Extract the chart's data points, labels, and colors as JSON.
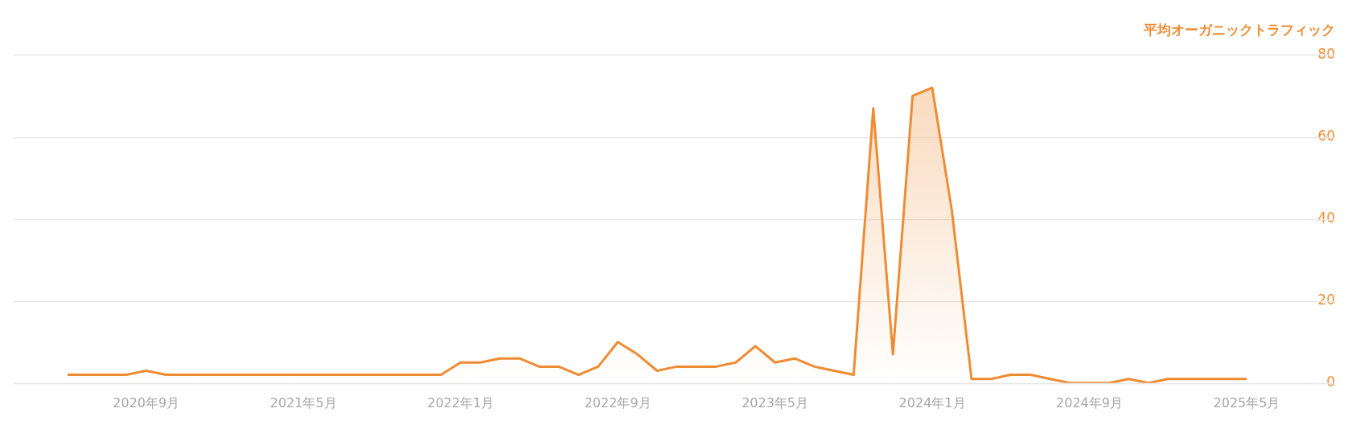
{
  "chart_data": {
    "type": "area",
    "ylabel": "平均オーガニックトラフィック",
    "categories": [
      null,
      null,
      null,
      null,
      "2020年9月",
      null,
      null,
      null,
      null,
      null,
      null,
      null,
      "2021年5月",
      null,
      null,
      null,
      null,
      null,
      null,
      null,
      "2022年1月",
      null,
      null,
      null,
      null,
      null,
      null,
      null,
      "2022年9月",
      null,
      null,
      null,
      null,
      null,
      null,
      null,
      "2023年5月",
      null,
      null,
      null,
      null,
      null,
      null,
      null,
      "2024年1月",
      null,
      null,
      null,
      null,
      null,
      null,
      null,
      "2024年9月",
      null,
      null,
      null,
      null,
      null,
      null,
      null,
      "2025年5月"
    ],
    "series": [
      {
        "color": "#ef8c33",
        "values": [
          2,
          2,
          2,
          2,
          3,
          2,
          2,
          2,
          2,
          2,
          2,
          2,
          2,
          2,
          2,
          2,
          2,
          2,
          2,
          2,
          5,
          5,
          6,
          6,
          4,
          4,
          2,
          4,
          10,
          7,
          3,
          4,
          4,
          4,
          5,
          9,
          5,
          6,
          4,
          3,
          2,
          67,
          7,
          70,
          72,
          42,
          1,
          1,
          2,
          2,
          1,
          0,
          0,
          0,
          1,
          0,
          1,
          1,
          1,
          1,
          1
        ]
      }
    ],
    "ylim": [
      0,
      80
    ],
    "yticks": [
      0,
      20,
      40,
      60,
      80
    ],
    "grid": "y",
    "legend": false
  }
}
